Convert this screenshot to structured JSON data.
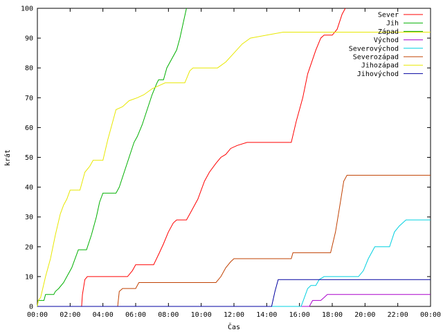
{
  "chart_data": {
    "type": "line",
    "xlabel": "Čas",
    "ylabel": "krát",
    "xlim": [
      0,
      24
    ],
    "ylim": [
      0,
      100
    ],
    "x_ticks": [
      "00:00",
      "02:00",
      "04:00",
      "06:00",
      "08:00",
      "10:00",
      "12:00",
      "14:00",
      "16:00",
      "18:00",
      "20:00",
      "22:00",
      "00:00"
    ],
    "y_ticks": [
      "0",
      "10",
      "20",
      "30",
      "40",
      "50",
      "60",
      "70",
      "80",
      "90",
      "100"
    ],
    "grid": false,
    "legend_position": "top-right",
    "series": [
      {
        "name": "Sever",
        "color": "#ff0000",
        "points": [
          [
            0,
            0
          ],
          [
            2.7,
            0
          ],
          [
            2.75,
            4
          ],
          [
            2.9,
            9
          ],
          [
            3.05,
            10
          ],
          [
            5.5,
            10
          ],
          [
            5.8,
            12
          ],
          [
            6.0,
            14
          ],
          [
            7.1,
            14
          ],
          [
            7.45,
            18
          ],
          [
            7.7,
            21
          ],
          [
            8.0,
            25
          ],
          [
            8.3,
            28
          ],
          [
            8.5,
            29
          ],
          [
            9.1,
            29
          ],
          [
            9.4,
            32
          ],
          [
            9.8,
            36
          ],
          [
            10.2,
            42
          ],
          [
            10.5,
            45
          ],
          [
            10.9,
            48
          ],
          [
            11.2,
            50
          ],
          [
            11.5,
            51
          ],
          [
            11.8,
            53
          ],
          [
            12.2,
            54
          ],
          [
            12.8,
            55
          ],
          [
            15.5,
            55
          ],
          [
            15.8,
            62
          ],
          [
            16.2,
            70
          ],
          [
            16.5,
            78
          ],
          [
            17.0,
            86
          ],
          [
            17.3,
            90
          ],
          [
            17.5,
            91
          ],
          [
            18.0,
            91
          ],
          [
            18.3,
            93
          ],
          [
            18.6,
            98
          ],
          [
            18.8,
            100
          ]
        ]
      },
      {
        "name": "Jih",
        "color": "#00b000",
        "points": [
          [
            0,
            0
          ],
          [
            0.05,
            2
          ],
          [
            0.4,
            2
          ],
          [
            0.5,
            4
          ],
          [
            1.0,
            4
          ],
          [
            1.1,
            5
          ],
          [
            1.3,
            6
          ],
          [
            1.6,
            8
          ],
          [
            1.8,
            10
          ],
          [
            2.1,
            13
          ],
          [
            2.5,
            19
          ],
          [
            3.0,
            19
          ],
          [
            3.3,
            24
          ],
          [
            3.6,
            30
          ],
          [
            3.8,
            35
          ],
          [
            4.0,
            38
          ],
          [
            4.8,
            38
          ],
          [
            5.0,
            40
          ],
          [
            5.3,
            45
          ],
          [
            5.6,
            50
          ],
          [
            5.9,
            55
          ],
          [
            6.1,
            57
          ],
          [
            6.4,
            61
          ],
          [
            6.7,
            66
          ],
          [
            7.0,
            71
          ],
          [
            7.3,
            75
          ],
          [
            7.4,
            76
          ],
          [
            7.7,
            76
          ],
          [
            7.9,
            80
          ],
          [
            8.2,
            83
          ],
          [
            8.5,
            86
          ],
          [
            8.7,
            90
          ],
          [
            8.9,
            95
          ],
          [
            9.1,
            100
          ]
        ]
      },
      {
        "name": "Západ",
        "color": "#00a000",
        "points": []
      },
      {
        "name": "Východ",
        "color": "#aa00cc",
        "points": [
          [
            0,
            0
          ],
          [
            16.6,
            0
          ],
          [
            16.8,
            2
          ],
          [
            17.3,
            2
          ],
          [
            17.5,
            3
          ],
          [
            17.7,
            4
          ],
          [
            24,
            4
          ]
        ]
      },
      {
        "name": "Severovýchod",
        "color": "#00d0e0",
        "points": [
          [
            0,
            0
          ],
          [
            16.1,
            0
          ],
          [
            16.3,
            3
          ],
          [
            16.5,
            6
          ],
          [
            16.7,
            7
          ],
          [
            17.0,
            7
          ],
          [
            17.2,
            9
          ],
          [
            17.5,
            10
          ],
          [
            19.6,
            10
          ],
          [
            19.9,
            12
          ],
          [
            20.2,
            16
          ],
          [
            20.6,
            20
          ],
          [
            21.5,
            20
          ],
          [
            21.8,
            25
          ],
          [
            22.1,
            27
          ],
          [
            22.5,
            29
          ],
          [
            24,
            29
          ]
        ]
      },
      {
        "name": "Severozápad",
        "color": "#c04000",
        "points": [
          [
            0,
            0
          ],
          [
            4.9,
            0
          ],
          [
            5.0,
            5
          ],
          [
            5.2,
            6
          ],
          [
            6.0,
            6
          ],
          [
            6.2,
            8
          ],
          [
            10.9,
            8
          ],
          [
            11.2,
            10
          ],
          [
            11.5,
            13
          ],
          [
            11.8,
            15
          ],
          [
            12.0,
            16
          ],
          [
            15.5,
            16
          ],
          [
            15.6,
            18
          ],
          [
            17.9,
            18
          ],
          [
            18.2,
            25
          ],
          [
            18.5,
            35
          ],
          [
            18.7,
            42
          ],
          [
            18.9,
            44
          ],
          [
            24,
            44
          ]
        ]
      },
      {
        "name": "Jihozápad",
        "color": "#e8e800",
        "points": [
          [
            0,
            0
          ],
          [
            0.05,
            2
          ],
          [
            0.2,
            3
          ],
          [
            0.5,
            10
          ],
          [
            0.8,
            16
          ],
          [
            1.1,
            24
          ],
          [
            1.4,
            31
          ],
          [
            1.6,
            34
          ],
          [
            1.8,
            36
          ],
          [
            2.0,
            39
          ],
          [
            2.6,
            39
          ],
          [
            2.9,
            45
          ],
          [
            3.2,
            47
          ],
          [
            3.4,
            49
          ],
          [
            4.0,
            49
          ],
          [
            4.3,
            56
          ],
          [
            4.6,
            62
          ],
          [
            4.8,
            66
          ],
          [
            5.2,
            67
          ],
          [
            5.6,
            69
          ],
          [
            6.1,
            70
          ],
          [
            6.5,
            71
          ],
          [
            7.0,
            73
          ],
          [
            7.4,
            74
          ],
          [
            7.8,
            75
          ],
          [
            9.0,
            75
          ],
          [
            9.3,
            79
          ],
          [
            9.5,
            80
          ],
          [
            11.0,
            80
          ],
          [
            11.5,
            82
          ],
          [
            12.0,
            85
          ],
          [
            12.5,
            88
          ],
          [
            13.0,
            90
          ],
          [
            14.0,
            91
          ],
          [
            15.0,
            92
          ],
          [
            24,
            92
          ]
        ]
      },
      {
        "name": "Jihovýchod",
        "color": "#0000a0",
        "points": [
          [
            0,
            0
          ],
          [
            14.3,
            0
          ],
          [
            14.5,
            5
          ],
          [
            14.7,
            9
          ],
          [
            24,
            9
          ]
        ]
      }
    ]
  }
}
